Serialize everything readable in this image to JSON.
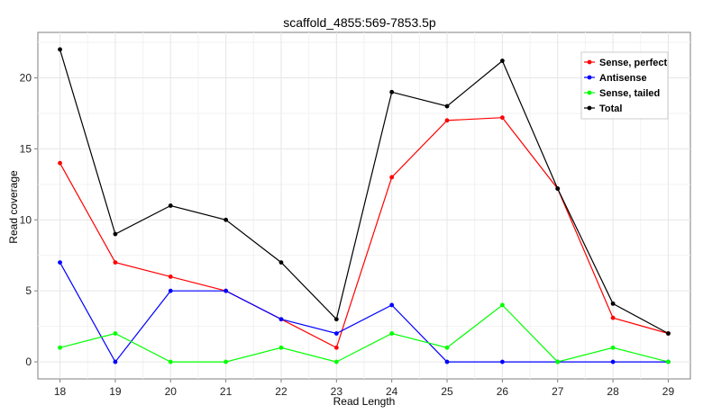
{
  "chart_data": {
    "type": "line",
    "title": "scaffold_4855:569-7853.5p",
    "xlabel": "Read Length",
    "ylabel": "Read coverage",
    "x": [
      18,
      19,
      20,
      21,
      22,
      23,
      24,
      25,
      26,
      27,
      28,
      29
    ],
    "xlim": [
      17.6,
      29.4
    ],
    "ylim": [
      -1.2,
      23.2
    ],
    "yticks": [
      0,
      5,
      10,
      15,
      20
    ],
    "grid": true,
    "legend_position": "top-right",
    "series": [
      {
        "name": "Sense, perfect",
        "color": "#ff0000",
        "values": [
          14,
          7,
          6,
          5,
          3,
          1,
          13,
          17,
          17.2,
          12.2,
          3.1,
          2
        ]
      },
      {
        "name": "Antisense",
        "color": "#0000ff",
        "values": [
          7,
          0,
          5,
          5,
          3,
          2,
          4,
          0,
          0,
          0,
          0,
          0
        ]
      },
      {
        "name": "Sense, tailed",
        "color": "#00ff00",
        "values": [
          1,
          2,
          0,
          0,
          1,
          0,
          2,
          1,
          4,
          0,
          1,
          0
        ]
      },
      {
        "name": "Total",
        "color": "#000000",
        "values": [
          22,
          9,
          11,
          10,
          7,
          3,
          19,
          18,
          21.2,
          12.2,
          4.1,
          2
        ]
      }
    ]
  }
}
